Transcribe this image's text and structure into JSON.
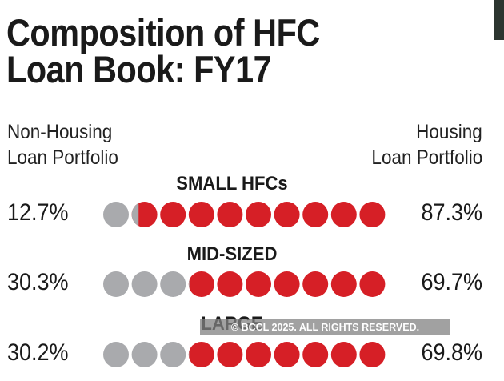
{
  "chart_data": {
    "type": "dot-proportion",
    "title": "Composition of HFC Loan Book: FY17",
    "left_label": "Non-Housing Loan Portfolio",
    "right_label": "Housing Loan Portfolio",
    "dots_per_row": 10,
    "colors": {
      "non_housing": "#a9aaad",
      "housing": "#d61f26"
    },
    "rows": [
      {
        "category": "SMALL HFCs",
        "non_housing": "12.7%",
        "housing": "87.3%",
        "non_housing_value": 12.7
      },
      {
        "category": "MID-SIZED",
        "non_housing": "30.3%",
        "housing": "69.7%",
        "non_housing_value": 30.3
      },
      {
        "category": "LARGE",
        "non_housing": "30.2%",
        "housing": "69.8%",
        "non_housing_value": 30.2
      }
    ]
  },
  "title_line1": "Composition of HFC",
  "title_line2": "Loan Book: FY17",
  "left_label_1": "Non-Housing",
  "left_label_2": "Loan Portfolio",
  "right_label_1": "Housing",
  "right_label_2": "Loan Portfolio",
  "watermark": "© BCCL 2025. ALL RIGHTS RESERVED."
}
